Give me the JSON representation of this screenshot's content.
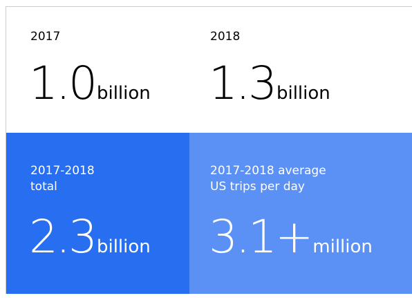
{
  "tiles": [
    {
      "label": "2017",
      "value": "1.0",
      "unit": "billion"
    },
    {
      "label": "2018",
      "value": "1.3",
      "unit": "billion"
    },
    {
      "label": "2017-2018\ntotal",
      "value": "2.3",
      "unit": "billion"
    },
    {
      "label": "2017-2018 average\nUS trips per day",
      "value": "3.1+",
      "unit": "million"
    }
  ]
}
